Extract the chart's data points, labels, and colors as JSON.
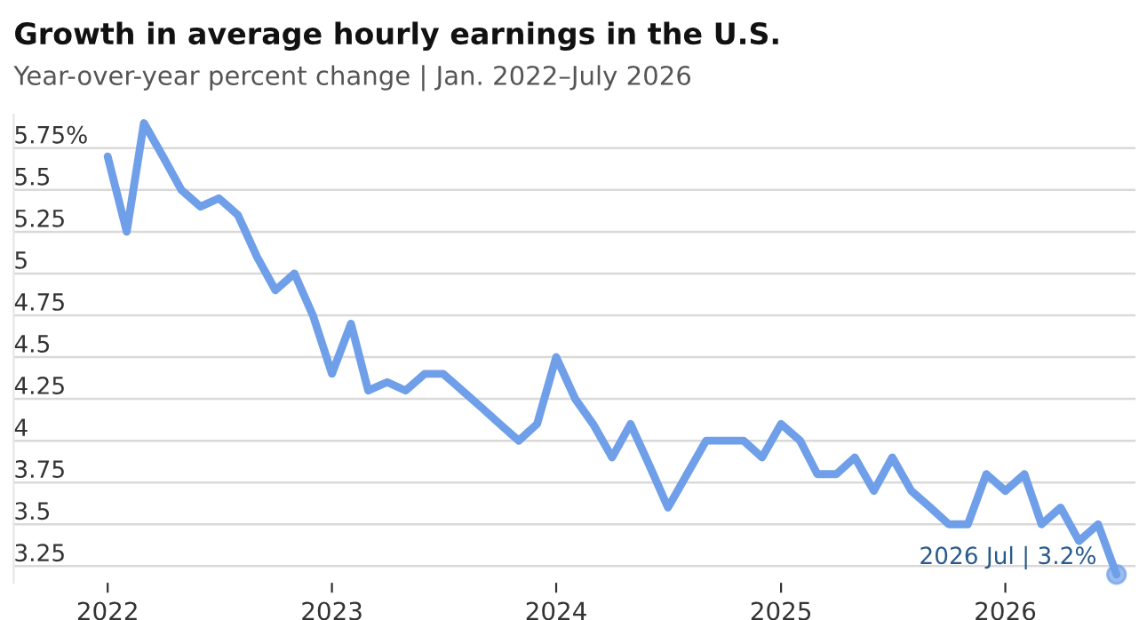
{
  "chart_data": {
    "type": "line",
    "title": "Growth in average hourly earnings in the U.S.",
    "subtitle": "Year-over-year percent change | Jan. 2022–July 2026",
    "x": [
      "2022-01",
      "2022-02",
      "2022-03",
      "2022-04",
      "2022-05",
      "2022-06",
      "2022-07",
      "2022-08",
      "2022-09",
      "2022-10",
      "2022-11",
      "2022-12",
      "2023-01",
      "2023-02",
      "2023-03",
      "2023-04",
      "2023-05",
      "2023-06",
      "2023-07",
      "2023-08",
      "2023-09",
      "2023-10",
      "2023-11",
      "2023-12",
      "2024-01",
      "2024-02",
      "2024-03",
      "2024-04",
      "2024-05",
      "2024-06",
      "2024-07",
      "2024-08",
      "2024-09",
      "2024-10",
      "2024-11",
      "2024-12",
      "2025-01",
      "2025-02",
      "2025-03",
      "2025-04",
      "2025-05",
      "2025-06",
      "2025-07",
      "2025-08",
      "2025-09",
      "2025-10",
      "2025-11",
      "2025-12",
      "2026-01",
      "2026-02",
      "2026-03",
      "2026-04",
      "2026-05",
      "2026-06",
      "2026-07"
    ],
    "series": [
      {
        "color": "#6f9fe8",
        "values": [
          5.7,
          5.25,
          5.9,
          5.7,
          5.5,
          5.4,
          5.45,
          5.35,
          5.1,
          4.9,
          5.0,
          4.75,
          4.4,
          4.7,
          4.3,
          4.35,
          4.3,
          4.4,
          4.4,
          4.3,
          4.2,
          4.1,
          4.0,
          4.1,
          4.5,
          4.25,
          4.1,
          3.9,
          4.1,
          3.85,
          3.6,
          3.8,
          4.0,
          4.0,
          4.0,
          3.9,
          4.1,
          4.0,
          3.8,
          3.8,
          3.9,
          3.7,
          3.9,
          3.7,
          3.6,
          3.5,
          3.5,
          3.8,
          3.7,
          3.8,
          3.5,
          3.6,
          3.4,
          3.5,
          3.2
        ]
      }
    ],
    "xlim": [
      "2021-08-01",
      "2026-08-01"
    ],
    "xticks": [
      {
        "value": "2022-01-01",
        "label": "2022"
      },
      {
        "value": "2023-01-01",
        "label": "2023"
      },
      {
        "value": "2024-01-01",
        "label": "2024"
      },
      {
        "value": "2025-01-01",
        "label": "2025"
      },
      {
        "value": "2026-01-01",
        "label": "2026"
      }
    ],
    "ylim": [
      3.15,
      5.95
    ],
    "yticks": [
      {
        "value": 3.25,
        "label": "3.25"
      },
      {
        "value": 3.5,
        "label": "3.5"
      },
      {
        "value": 3.75,
        "label": "3.75"
      },
      {
        "value": 4,
        "label": "4"
      },
      {
        "value": 4.25,
        "label": "4.25"
      },
      {
        "value": 4.5,
        "label": "4.5"
      },
      {
        "value": 4.75,
        "label": "4.75"
      },
      {
        "value": 5,
        "label": "5"
      },
      {
        "value": 5.25,
        "label": "5.25"
      },
      {
        "value": 5.5,
        "label": "5.5"
      },
      {
        "value": 5.75,
        "label": "5.75%"
      }
    ],
    "grid": "y",
    "annotations": [
      {
        "text": "2026 Jul | 3.2%",
        "x": "2026-07",
        "y": 3.2
      }
    ]
  }
}
